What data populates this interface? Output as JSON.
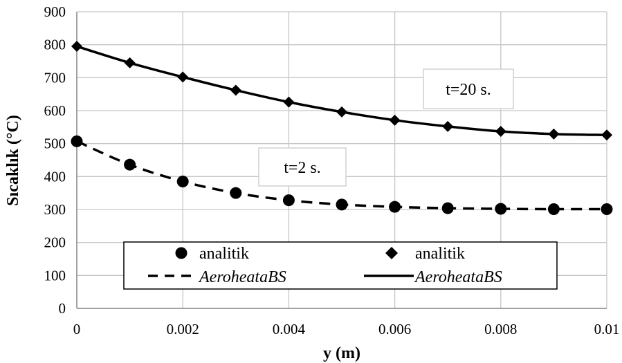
{
  "chart_data": {
    "type": "line",
    "xlabel": "y (m)",
    "ylabel": "Sıcaklık (°C)",
    "xlim": [
      0,
      0.01
    ],
    "ylim": [
      0,
      900
    ],
    "x_ticks": [
      0,
      0.002,
      0.004,
      0.006,
      0.008,
      0.01
    ],
    "x_tick_labels": [
      "0",
      "0.002",
      "0.004",
      "0.006",
      "0.008",
      "0.01"
    ],
    "y_ticks": [
      0,
      100,
      200,
      300,
      400,
      500,
      600,
      700,
      800,
      900
    ],
    "y_tick_labels": [
      "0",
      "100",
      "200",
      "300",
      "400",
      "500",
      "600",
      "700",
      "800",
      "900"
    ],
    "grid": true,
    "x": [
      0,
      0.001,
      0.002,
      0.003,
      0.004,
      0.005,
      0.006,
      0.007,
      0.008,
      0.009,
      0.01
    ],
    "series": [
      {
        "name": "analitik",
        "style": "marker-circle",
        "color": "#000000",
        "values": [
          507,
          436,
          385,
          350,
          328,
          315,
          308,
          304,
          302,
          301,
          301
        ]
      },
      {
        "name": "AeroheataBS",
        "style": "dashed-line",
        "color": "#000000",
        "values": [
          507,
          436,
          385,
          350,
          328,
          315,
          308,
          304,
          302,
          301,
          301
        ]
      },
      {
        "name": "analitik",
        "style": "marker-diamond",
        "color": "#000000",
        "values": [
          795,
          745,
          702,
          662,
          626,
          596,
          571,
          552,
          537,
          529,
          526
        ]
      },
      {
        "name": "AeroheataBS",
        "style": "solid-line",
        "color": "#000000",
        "values": [
          795,
          745,
          702,
          662,
          626,
          596,
          571,
          552,
          537,
          529,
          526
        ]
      }
    ],
    "annotations": [
      {
        "text": "t=20 s.",
        "series_group": "upper"
      },
      {
        "text": "t=2 s.",
        "series_group": "lower"
      }
    ],
    "legend": {
      "placement": "bottom-center",
      "entries": [
        {
          "label": "analitik",
          "symbol": "circle"
        },
        {
          "label": "analitik",
          "symbol": "diamond"
        },
        {
          "label": "AeroheataBS",
          "symbol": "dashed"
        },
        {
          "label": "AeroheataBS",
          "symbol": "solid"
        }
      ]
    }
  }
}
